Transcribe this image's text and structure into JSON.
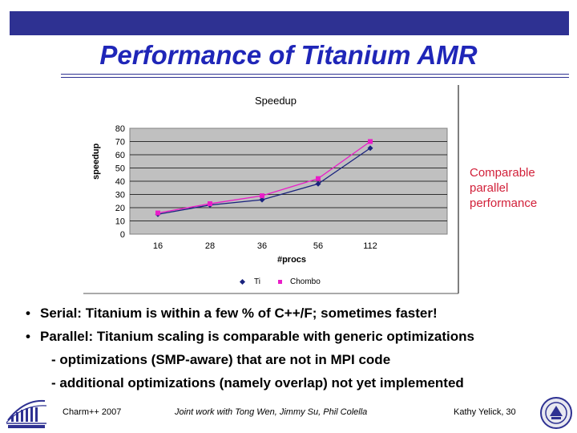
{
  "slide": {
    "title": "Performance of Titanium AMR",
    "callout": [
      "Comparable",
      "parallel",
      "performance"
    ],
    "bullets": [
      "Serial: Titanium is within a few % of C++/F; sometimes faster!",
      "Parallel: Titanium scaling is comparable with generic optimizations"
    ],
    "sub_items": [
      "- optimizations (SMP-aware) that are not in MPI code",
      "- additional optimizations (namely overlap) not yet implemented"
    ],
    "footer": {
      "left": "Charm++ 2007",
      "center": "Joint work with Tong Wen, Jimmy Su, Phil Colella",
      "right": "Kathy Yelick, 30"
    },
    "colors": {
      "title": "#1f26b8",
      "bar": "#2e3192",
      "callout": "#d2213a",
      "plot_bg": "#c0c0c0"
    },
    "icons": {
      "left_logo": "berkeley-lab-logo-icon",
      "right_logo": "uc-seal-icon"
    }
  },
  "chart_data": {
    "type": "line",
    "title": "Speedup",
    "xlabel": "#procs",
    "ylabel": "speedup",
    "categories": [
      "16",
      "28",
      "36",
      "56",
      "112"
    ],
    "ylim": [
      0,
      80
    ],
    "yticks": [
      "0",
      "10",
      "20",
      "30",
      "40",
      "50",
      "60",
      "70",
      "80"
    ],
    "grid": "horizontal",
    "legend": "bottom",
    "series": [
      {
        "name": "Ti",
        "values": [
          15,
          22,
          26,
          38,
          65
        ],
        "color": "#1a237e",
        "marker": "diamond"
      },
      {
        "name": "Chombo",
        "values": [
          16,
          23,
          29,
          42,
          70
        ],
        "color": "#e91ec8",
        "marker": "square"
      }
    ]
  }
}
